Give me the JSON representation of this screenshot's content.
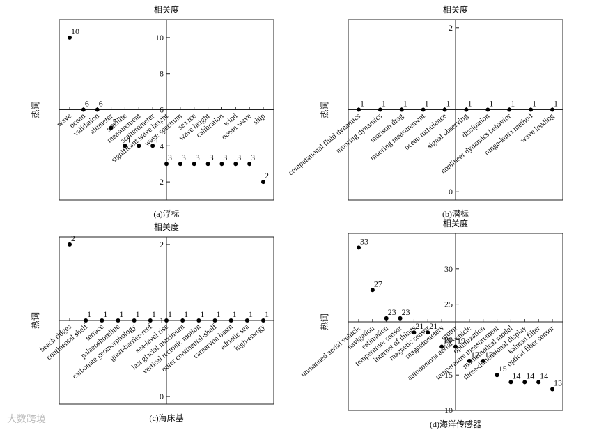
{
  "watermark": "大数跨境",
  "chart_data": [
    {
      "type": "dot",
      "ylabel": "相关度",
      "xlabel": "热词",
      "caption": "(a)浮标",
      "color": "#000000",
      "categories": [
        "wave",
        "ocean",
        "validation",
        "altimeter",
        "satellite",
        "measurement",
        "scatterometer",
        "significant wave height",
        "wave spectrum",
        "sea ice",
        "wave height",
        "calibration",
        "wind",
        "ocean wave",
        "ship"
      ],
      "values": [
        10,
        6,
        6,
        5,
        4,
        4,
        4,
        3,
        3,
        3,
        3,
        3,
        3,
        3,
        2
      ],
      "ylim": [
        1,
        11
      ],
      "yticks": [
        2,
        4,
        6,
        8,
        10
      ]
    },
    {
      "type": "dot",
      "ylabel": "相关度",
      "xlabel": "热词",
      "caption": "(b)潜标",
      "color": "#000000",
      "categories": [
        "computational fluid dynamics",
        "mooring dynamics",
        "morison drag",
        "mooring measurement",
        "ocean turbulence",
        "signal observing",
        "dissipation",
        "nonlinear dynamics behavior",
        "runge-kutta method",
        "wave loading"
      ],
      "values": [
        1,
        1,
        1,
        1,
        1,
        1,
        1,
        1,
        1,
        1
      ],
      "ylim": [
        -0.1,
        2.1
      ],
      "yticks": [
        0,
        2
      ]
    },
    {
      "type": "dot",
      "ylabel": "相关度",
      "xlabel": "热词",
      "caption": "(c)海床基",
      "color": "#000000",
      "categories": [
        "beach ridges",
        "continental shelf",
        "terrace",
        "palaeoshoreline",
        "carbonate geomorphology",
        "great-barrier-reef",
        "sea-level rise",
        "last glacial maximum",
        "vertical tectonic motion",
        "outer continental-shelf",
        "carnarvon basin",
        "adriatic sea",
        "high-energy"
      ],
      "values": [
        2,
        1,
        1,
        1,
        1,
        1,
        1,
        1,
        1,
        1,
        1,
        1,
        1
      ],
      "ylim": [
        -0.1,
        2.1
      ],
      "yticks": [
        0,
        1,
        2
      ]
    },
    {
      "type": "dot",
      "ylabel": "相关度",
      "xlabel": "热词",
      "caption": "(d)海洋传感器",
      "color": "#000000",
      "categories": [
        "unmanned aerial vehicle",
        "navigation",
        "estimation",
        "temperature sensor",
        "internet of things",
        "magnetic sensor",
        "magnetometers",
        "motor",
        "autonomous aerial vehicle",
        "optimization",
        "temperature measurement",
        "mathematical model",
        "three-dimensional display",
        "kalman filter",
        "optical fiber sensor"
      ],
      "values": [
        33,
        27,
        23,
        23,
        21,
        21,
        19,
        19,
        17,
        17,
        15,
        14,
        14,
        14,
        13
      ],
      "ylim": [
        10,
        35
      ],
      "yticks": [
        10,
        15,
        20,
        25,
        30
      ]
    }
  ]
}
